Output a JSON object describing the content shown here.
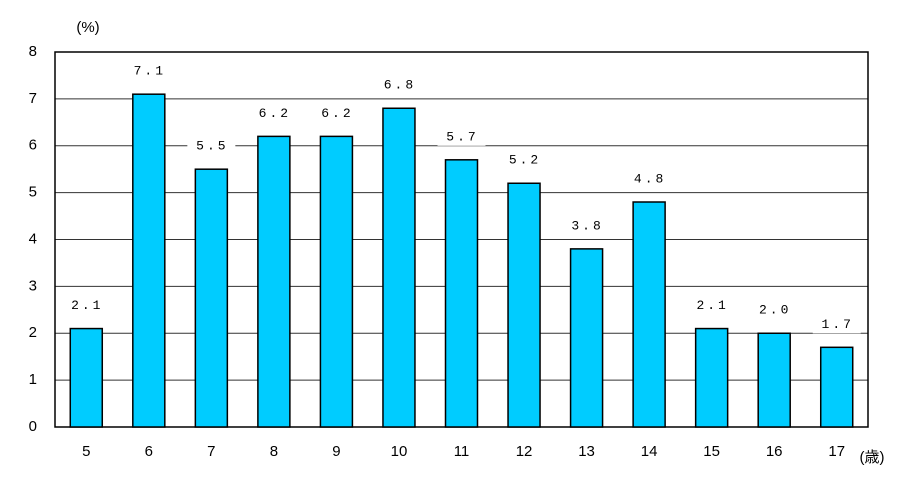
{
  "chart_data": {
    "type": "bar",
    "y_unit": "(%)",
    "x_unit": "(歳)",
    "categories": [
      "5",
      "6",
      "7",
      "8",
      "9",
      "10",
      "11",
      "12",
      "13",
      "14",
      "15",
      "16",
      "17"
    ],
    "values": [
      2.1,
      7.1,
      5.5,
      6.2,
      6.2,
      6.8,
      5.7,
      5.2,
      3.8,
      4.8,
      2.1,
      2.0,
      1.7
    ],
    "value_labels": [
      "2.1",
      "7.1",
      "5.5",
      "6.2",
      "6.2",
      "6.8",
      "5.7",
      "5.2",
      "3.8",
      "4.8",
      "2.1",
      "2.0",
      "1.7"
    ],
    "color": "#00ccff",
    "ylim": [
      0,
      8
    ],
    "yticks": [
      0,
      1,
      2,
      3,
      4,
      5,
      6,
      7,
      8
    ],
    "grid": true
  }
}
